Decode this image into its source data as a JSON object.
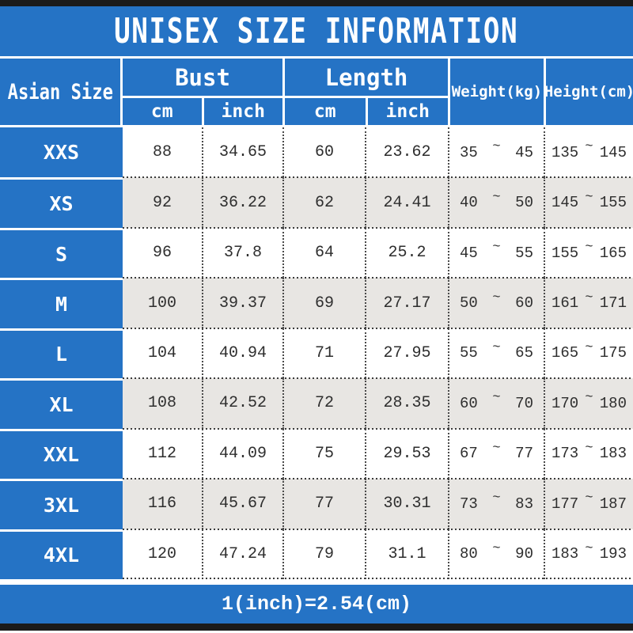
{
  "title": "UNISEX SIZE INFORMATION",
  "header": {
    "size_column": "Asian Size",
    "bust": {
      "label": "Bust",
      "sub_cm": "cm",
      "sub_inch": "inch"
    },
    "length": {
      "label": "Length",
      "sub_cm": "cm",
      "sub_inch": "inch"
    },
    "weight": "Weight(kg)",
    "height": "Height(cm)"
  },
  "tilde": "~",
  "rows": [
    {
      "size": "XXS",
      "bust_cm": "88",
      "bust_inch": "34.65",
      "length_cm": "60",
      "length_inch": "23.62",
      "weight_min": "35",
      "weight_max": "45",
      "height_min": "135",
      "height_max": "145"
    },
    {
      "size": "XS",
      "bust_cm": "92",
      "bust_inch": "36.22",
      "length_cm": "62",
      "length_inch": "24.41",
      "weight_min": "40",
      "weight_max": "50",
      "height_min": "145",
      "height_max": "155"
    },
    {
      "size": "S",
      "bust_cm": "96",
      "bust_inch": "37.8",
      "length_cm": "64",
      "length_inch": "25.2",
      "weight_min": "45",
      "weight_max": "55",
      "height_min": "155",
      "height_max": "165"
    },
    {
      "size": "M",
      "bust_cm": "100",
      "bust_inch": "39.37",
      "length_cm": "69",
      "length_inch": "27.17",
      "weight_min": "50",
      "weight_max": "60",
      "height_min": "161",
      "height_max": "171"
    },
    {
      "size": "L",
      "bust_cm": "104",
      "bust_inch": "40.94",
      "length_cm": "71",
      "length_inch": "27.95",
      "weight_min": "55",
      "weight_max": "65",
      "height_min": "165",
      "height_max": "175"
    },
    {
      "size": "XL",
      "bust_cm": "108",
      "bust_inch": "42.52",
      "length_cm": "72",
      "length_inch": "28.35",
      "weight_min": "60",
      "weight_max": "70",
      "height_min": "170",
      "height_max": "180"
    },
    {
      "size": "XXL",
      "bust_cm": "112",
      "bust_inch": "44.09",
      "length_cm": "75",
      "length_inch": "29.53",
      "weight_min": "67",
      "weight_max": "77",
      "height_min": "173",
      "height_max": "183"
    },
    {
      "size": "3XL",
      "bust_cm": "116",
      "bust_inch": "45.67",
      "length_cm": "77",
      "length_inch": "30.31",
      "weight_min": "73",
      "weight_max": "83",
      "height_min": "177",
      "height_max": "187"
    },
    {
      "size": "4XL",
      "bust_cm": "120",
      "bust_inch": "47.24",
      "length_cm": "79",
      "length_inch": "31.1",
      "weight_min": "80",
      "weight_max": "90",
      "height_min": "183",
      "height_max": "193"
    }
  ],
  "footer": "1(inch)=2.54(cm)",
  "colors": {
    "blue": "#2573C5",
    "stripe": "#E8E6E3",
    "bar": "#1B1B1B"
  }
}
